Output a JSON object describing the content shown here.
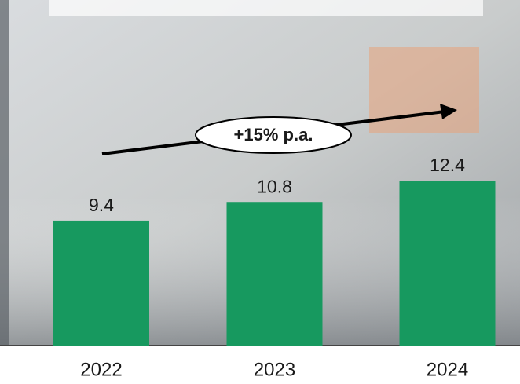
{
  "chart_data": {
    "type": "bar",
    "categories": [
      "2022",
      "2023",
      "2024"
    ],
    "values": [
      9.4,
      10.8,
      12.4
    ],
    "color": "#17995f",
    "ylim": [
      0,
      26
    ],
    "annotation": "+15% p.a."
  }
}
